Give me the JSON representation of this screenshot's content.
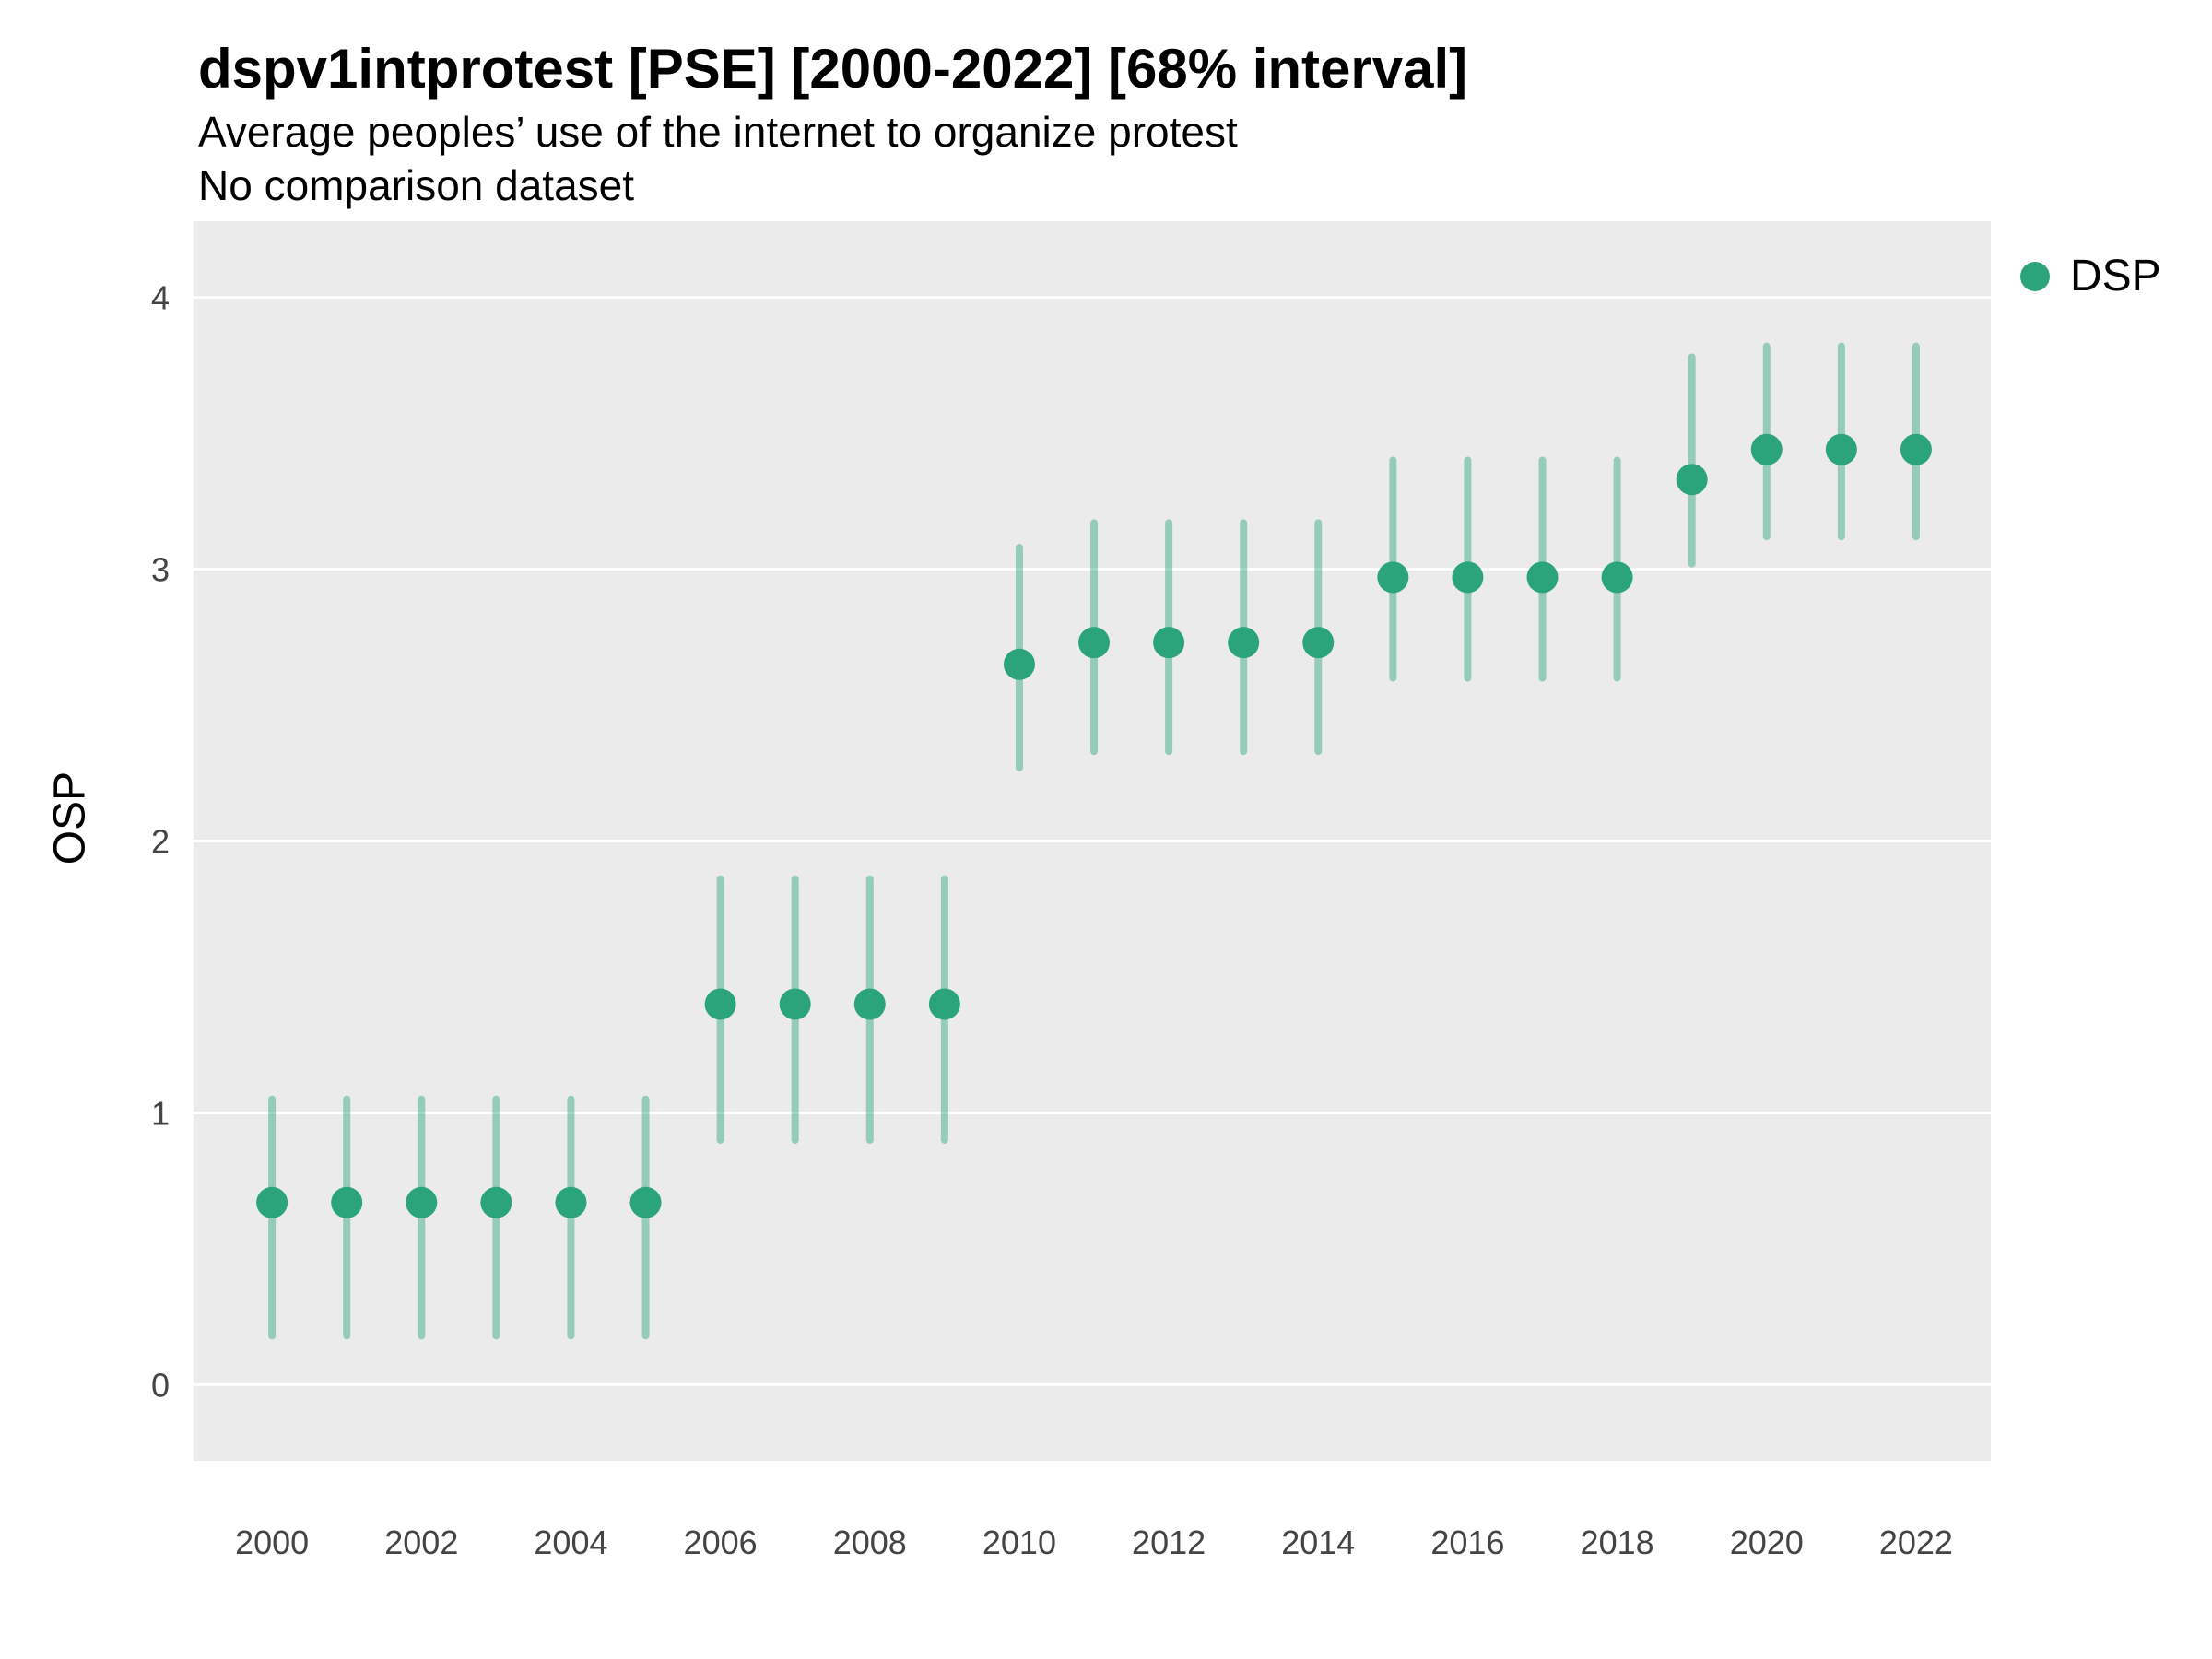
{
  "chart_data": {
    "type": "pointrange",
    "title": "dspv1intprotest [PSE] [2000-2022] [68% interval]",
    "subtitle": "Average peoples’ use of the internet to organize protest",
    "subtitle2": "No comparison dataset",
    "xlabel": "",
    "ylabel": "OSP",
    "legend": {
      "label": "DSP",
      "position": "right"
    },
    "colors": {
      "point": "#2BA47C",
      "range": "#2BA47C",
      "range_opacity": 0.45,
      "panel": "#EBEBEB",
      "grid": "#FFFFFF",
      "tick_text": "#444444"
    },
    "grid": "horizontal-major-only",
    "ylim": [
      -0.28,
      4.28
    ],
    "xlim": [
      1998.95,
      2023.0
    ],
    "yticks": [
      0,
      1,
      2,
      3,
      4
    ],
    "xticks": [
      2000,
      2002,
      2004,
      2006,
      2008,
      2010,
      2012,
      2014,
      2016,
      2018,
      2020,
      2022
    ],
    "series": [
      {
        "name": "DSP",
        "points": [
          {
            "x": 2000,
            "y": 0.67,
            "lo": 0.18,
            "hi": 1.05
          },
          {
            "x": 2001,
            "y": 0.67,
            "lo": 0.18,
            "hi": 1.05
          },
          {
            "x": 2002,
            "y": 0.67,
            "lo": 0.18,
            "hi": 1.05
          },
          {
            "x": 2003,
            "y": 0.67,
            "lo": 0.18,
            "hi": 1.05
          },
          {
            "x": 2004,
            "y": 0.67,
            "lo": 0.18,
            "hi": 1.05
          },
          {
            "x": 2005,
            "y": 0.67,
            "lo": 0.18,
            "hi": 1.05
          },
          {
            "x": 2006,
            "y": 1.4,
            "lo": 0.9,
            "hi": 1.86
          },
          {
            "x": 2007,
            "y": 1.4,
            "lo": 0.9,
            "hi": 1.86
          },
          {
            "x": 2008,
            "y": 1.4,
            "lo": 0.9,
            "hi": 1.86
          },
          {
            "x": 2009,
            "y": 1.4,
            "lo": 0.9,
            "hi": 1.86
          },
          {
            "x": 2010,
            "y": 2.65,
            "lo": 2.27,
            "hi": 3.08
          },
          {
            "x": 2011,
            "y": 2.73,
            "lo": 2.33,
            "hi": 3.17
          },
          {
            "x": 2012,
            "y": 2.73,
            "lo": 2.33,
            "hi": 3.17
          },
          {
            "x": 2013,
            "y": 2.73,
            "lo": 2.33,
            "hi": 3.17
          },
          {
            "x": 2014,
            "y": 2.73,
            "lo": 2.33,
            "hi": 3.17
          },
          {
            "x": 2015,
            "y": 2.97,
            "lo": 2.6,
            "hi": 3.4
          },
          {
            "x": 2016,
            "y": 2.97,
            "lo": 2.6,
            "hi": 3.4
          },
          {
            "x": 2017,
            "y": 2.97,
            "lo": 2.6,
            "hi": 3.4
          },
          {
            "x": 2018,
            "y": 2.97,
            "lo": 2.6,
            "hi": 3.4
          },
          {
            "x": 2019,
            "y": 3.33,
            "lo": 3.02,
            "hi": 3.78
          },
          {
            "x": 2020,
            "y": 3.44,
            "lo": 3.12,
            "hi": 3.82
          },
          {
            "x": 2021,
            "y": 3.44,
            "lo": 3.12,
            "hi": 3.82
          },
          {
            "x": 2022,
            "y": 3.44,
            "lo": 3.12,
            "hi": 3.82
          }
        ]
      }
    ]
  }
}
